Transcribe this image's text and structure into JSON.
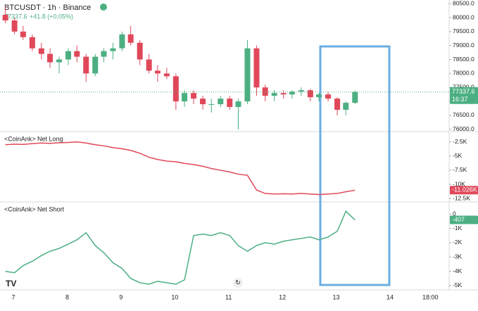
{
  "chart_data": [
    {
      "type": "candlestick",
      "title": "BTCUSDT · 1h · Binance",
      "last": "77337.6",
      "change": "+41.8 (+0.05%)",
      "price_label": "77337.6",
      "countdown": "16:37",
      "up_color": "#4caf82",
      "down_color": "#e0485a",
      "x": [
        6.85,
        7.02,
        7.18,
        7.35,
        7.52,
        7.68,
        7.85,
        8.02,
        8.18,
        8.35,
        8.52,
        8.68,
        8.85,
        9.02,
        9.18,
        9.35,
        9.52,
        9.68,
        9.85,
        10.02,
        10.18,
        10.35,
        10.52,
        10.68,
        10.85,
        11.02,
        11.18,
        11.35,
        11.52,
        11.68,
        11.85,
        12.02,
        12.18,
        12.35,
        12.52,
        12.68,
        12.85,
        13.02,
        13.18,
        13.35
      ],
      "ohlc": [
        [
          80100,
          80400,
          79800,
          79900
        ],
        [
          79900,
          80000,
          79400,
          79500
        ],
        [
          79500,
          79700,
          79200,
          79300
        ],
        [
          79300,
          79400,
          78800,
          78900
        ],
        [
          78900,
          79100,
          78500,
          78700
        ],
        [
          78700,
          78900,
          78200,
          78400
        ],
        [
          78400,
          78600,
          78000,
          78500
        ],
        [
          78500,
          78900,
          78300,
          78800
        ],
        [
          78800,
          79000,
          78400,
          78600
        ],
        [
          78600,
          78700,
          77700,
          78000
        ],
        [
          78000,
          78700,
          77900,
          78600
        ],
        [
          78600,
          78900,
          78400,
          78800
        ],
        [
          78800,
          79100,
          78500,
          78900
        ],
        [
          78900,
          79500,
          78800,
          79400
        ],
        [
          79400,
          79700,
          79000,
          79100
        ],
        [
          79100,
          79200,
          78300,
          78500
        ],
        [
          78500,
          78700,
          78000,
          78100
        ],
        [
          78100,
          78300,
          77700,
          78000
        ],
        [
          78000,
          78200,
          77800,
          77900
        ],
        [
          77900,
          78000,
          76700,
          77000
        ],
        [
          77000,
          77400,
          76800,
          77300
        ],
        [
          77300,
          77400,
          76900,
          77100
        ],
        [
          77100,
          77200,
          76700,
          76900
        ],
        [
          76900,
          77100,
          76600,
          76900
        ],
        [
          76900,
          77200,
          76800,
          77100
        ],
        [
          77100,
          77200,
          76700,
          76800
        ],
        [
          76800,
          77100,
          76000,
          77000
        ],
        [
          77000,
          79200,
          76900,
          78900
        ],
        [
          78900,
          79000,
          77200,
          77500
        ],
        [
          77500,
          77600,
          77000,
          77200
        ],
        [
          77200,
          77400,
          77000,
          77300
        ],
        [
          77300,
          77400,
          77100,
          77250
        ],
        [
          77250,
          77400,
          77100,
          77350
        ],
        [
          77350,
          77500,
          77200,
          77400
        ],
        [
          77400,
          77450,
          77000,
          77150
        ],
        [
          77150,
          77300,
          77000,
          77250
        ],
        [
          77250,
          77350,
          77000,
          77100
        ],
        [
          77100,
          77150,
          76500,
          76700
        ],
        [
          76700,
          77000,
          76500,
          76950
        ],
        [
          76950,
          77400,
          76900,
          77337.6
        ]
      ],
      "ylim": [
        75920,
        80630
      ],
      "yticks": [
        {
          "value": 80500,
          "label": "80500.0"
        },
        {
          "value": 80000,
          "label": "80000.0"
        },
        {
          "value": 79500,
          "label": "79500.0"
        },
        {
          "value": 79000,
          "label": "79000.0"
        },
        {
          "value": 78500,
          "label": "78500.0"
        },
        {
          "value": 78000,
          "label": "78000.0"
        },
        {
          "value": 77500,
          "label": "77500.0"
        },
        {
          "value": 77000,
          "label": "77000.0"
        },
        {
          "value": 76500,
          "label": "76500.0"
        },
        {
          "value": 76000,
          "label": "76000.0"
        }
      ],
      "xlim": [
        6.75,
        15.1
      ],
      "xticks": [
        7,
        8,
        9,
        10,
        11,
        12,
        13,
        14,
        {
          "value": 14.75,
          "label": "18:00"
        }
      ]
    },
    {
      "type": "line",
      "title": "<CoinAnk> Net Long",
      "color": "#e0485a",
      "last_label": "-11.026K",
      "x": [
        6.85,
        7.02,
        7.18,
        7.35,
        7.52,
        7.68,
        7.85,
        8.02,
        8.18,
        8.35,
        8.52,
        8.68,
        8.85,
        9.02,
        9.18,
        9.35,
        9.52,
        9.68,
        9.85,
        10.02,
        10.18,
        10.35,
        10.52,
        10.68,
        10.85,
        11.02,
        11.18,
        11.35,
        11.52,
        11.68,
        11.85,
        12.02,
        12.18,
        12.35,
        12.52,
        12.68,
        12.85,
        13.02,
        13.18,
        13.35
      ],
      "values": [
        -3000,
        -2900,
        -2950,
        -2800,
        -2700,
        -2750,
        -2650,
        -2600,
        -2500,
        -2700,
        -3000,
        -3200,
        -3500,
        -3700,
        -4000,
        -4500,
        -5200,
        -5600,
        -5900,
        -6000,
        -6300,
        -6500,
        -6800,
        -7200,
        -7500,
        -7800,
        -8200,
        -8400,
        -11000,
        -11600,
        -11700,
        -11650,
        -11700,
        -11600,
        -11700,
        -11800,
        -11700,
        -11600,
        -11300,
        -11026
      ],
      "ylim": [
        -13100,
        -800
      ],
      "yticks": [
        {
          "value": -2500,
          "label": "-2.5K"
        },
        {
          "value": -5000,
          "label": "-5K"
        },
        {
          "value": -7500,
          "label": "-7.5K"
        },
        {
          "value": -10000,
          "label": "-10K"
        },
        {
          "value": -12500,
          "label": "-12.5K"
        }
      ]
    },
    {
      "type": "line",
      "title": "<CoinAnk> Net Short",
      "color": "#4caf82",
      "last_label": "-407",
      "x": [
        6.85,
        7.02,
        7.18,
        7.35,
        7.52,
        7.68,
        7.85,
        8.02,
        8.18,
        8.35,
        8.52,
        8.68,
        8.85,
        9.02,
        9.18,
        9.35,
        9.52,
        9.68,
        9.85,
        10.02,
        10.18,
        10.35,
        10.52,
        10.68,
        10.85,
        11.02,
        11.18,
        11.35,
        11.52,
        11.68,
        11.85,
        12.02,
        12.18,
        12.35,
        12.52,
        12.68,
        12.85,
        13.02,
        13.18,
        13.35
      ],
      "values": [
        -4000,
        -4100,
        -3600,
        -3300,
        -2900,
        -2600,
        -2400,
        -2100,
        -1800,
        -1300,
        -2200,
        -2700,
        -3400,
        -3800,
        -4500,
        -4800,
        -4900,
        -4700,
        -4800,
        -4900,
        -4600,
        -1500,
        -1400,
        -1500,
        -1300,
        -1500,
        -2200,
        -2600,
        -2200,
        -2000,
        -2100,
        -1900,
        -1800,
        -1700,
        -1600,
        -1800,
        -1600,
        -1200,
        200,
        -407
      ],
      "ylim": [
        -5300,
        800
      ],
      "yticks": [
        0,
        {
          "value": -1000,
          "label": "-1K"
        },
        {
          "value": -2000,
          "label": "-2K"
        },
        {
          "value": -3000,
          "label": "-3K"
        },
        {
          "value": -4000,
          "label": "-4K"
        },
        {
          "value": -5000,
          "label": "-5K"
        }
      ]
    }
  ]
}
